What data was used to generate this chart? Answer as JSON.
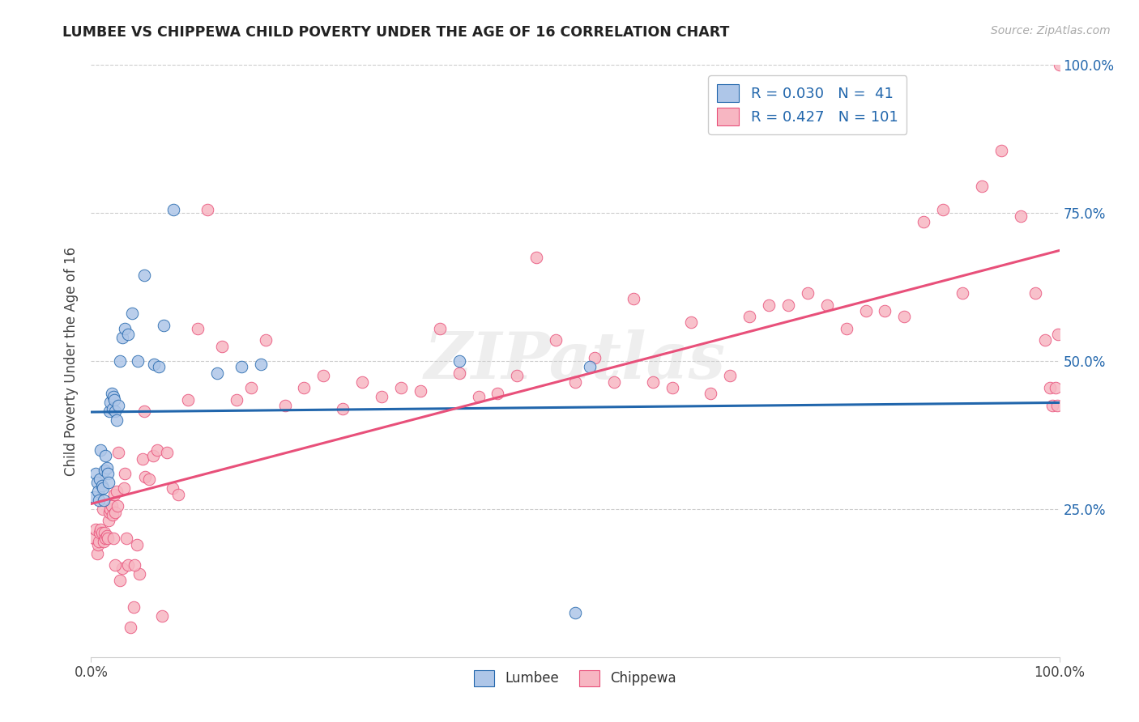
{
  "title": "LUMBEE VS CHIPPEWA CHILD POVERTY UNDER THE AGE OF 16 CORRELATION CHART",
  "source": "Source: ZipAtlas.com",
  "ylabel": "Child Poverty Under the Age of 16",
  "xlim": [
    0,
    1
  ],
  "ylim": [
    0,
    1
  ],
  "lumbee_color": "#aec6e8",
  "chippewa_color": "#f7b6c2",
  "lumbee_line_color": "#2166ac",
  "chippewa_line_color": "#e8507a",
  "watermark": "ZIPatlas",
  "background_color": "#ffffff",
  "lumbee_x": [
    0.003,
    0.005,
    0.006,
    0.007,
    0.008,
    0.009,
    0.01,
    0.011,
    0.012,
    0.013,
    0.014,
    0.015,
    0.016,
    0.017,
    0.018,
    0.019,
    0.02,
    0.021,
    0.022,
    0.023,
    0.024,
    0.025,
    0.026,
    0.028,
    0.03,
    0.032,
    0.035,
    0.038,
    0.042,
    0.048,
    0.055,
    0.065,
    0.07,
    0.075,
    0.085,
    0.13,
    0.155,
    0.175,
    0.38,
    0.5,
    0.515
  ],
  "lumbee_y": [
    0.27,
    0.31,
    0.295,
    0.28,
    0.265,
    0.3,
    0.35,
    0.29,
    0.285,
    0.265,
    0.315,
    0.34,
    0.32,
    0.31,
    0.295,
    0.415,
    0.43,
    0.445,
    0.42,
    0.44,
    0.435,
    0.415,
    0.4,
    0.425,
    0.5,
    0.54,
    0.555,
    0.545,
    0.58,
    0.5,
    0.645,
    0.495,
    0.49,
    0.56,
    0.755,
    0.48,
    0.49,
    0.495,
    0.5,
    0.075,
    0.49
  ],
  "chippewa_x": [
    0.003,
    0.005,
    0.006,
    0.007,
    0.008,
    0.009,
    0.01,
    0.011,
    0.012,
    0.013,
    0.014,
    0.015,
    0.016,
    0.017,
    0.018,
    0.019,
    0.02,
    0.021,
    0.022,
    0.023,
    0.024,
    0.025,
    0.026,
    0.027,
    0.028,
    0.03,
    0.032,
    0.034,
    0.036,
    0.038,
    0.041,
    0.044,
    0.047,
    0.05,
    0.053,
    0.056,
    0.06,
    0.064,
    0.068,
    0.073,
    0.078,
    0.084,
    0.09,
    0.1,
    0.11,
    0.12,
    0.135,
    0.15,
    0.165,
    0.18,
    0.2,
    0.22,
    0.24,
    0.26,
    0.28,
    0.3,
    0.32,
    0.34,
    0.36,
    0.38,
    0.4,
    0.42,
    0.44,
    0.46,
    0.48,
    0.5,
    0.52,
    0.54,
    0.56,
    0.58,
    0.6,
    0.62,
    0.64,
    0.66,
    0.68,
    0.7,
    0.72,
    0.74,
    0.76,
    0.78,
    0.8,
    0.82,
    0.84,
    0.86,
    0.88,
    0.9,
    0.92,
    0.94,
    0.96,
    0.975,
    0.985,
    0.99,
    0.993,
    0.996,
    0.998,
    0.999,
    1.0,
    0.025,
    0.035,
    0.045,
    0.055
  ],
  "chippewa_y": [
    0.2,
    0.215,
    0.175,
    0.19,
    0.195,
    0.21,
    0.215,
    0.21,
    0.25,
    0.195,
    0.21,
    0.2,
    0.205,
    0.2,
    0.23,
    0.245,
    0.25,
    0.255,
    0.24,
    0.2,
    0.275,
    0.245,
    0.28,
    0.255,
    0.345,
    0.13,
    0.15,
    0.285,
    0.2,
    0.155,
    0.05,
    0.085,
    0.19,
    0.14,
    0.335,
    0.305,
    0.3,
    0.34,
    0.35,
    0.07,
    0.345,
    0.285,
    0.275,
    0.435,
    0.555,
    0.755,
    0.525,
    0.435,
    0.455,
    0.535,
    0.425,
    0.455,
    0.475,
    0.42,
    0.465,
    0.44,
    0.455,
    0.45,
    0.555,
    0.48,
    0.44,
    0.445,
    0.475,
    0.675,
    0.535,
    0.465,
    0.505,
    0.465,
    0.605,
    0.465,
    0.455,
    0.565,
    0.445,
    0.475,
    0.575,
    0.595,
    0.595,
    0.615,
    0.595,
    0.555,
    0.585,
    0.585,
    0.575,
    0.735,
    0.755,
    0.615,
    0.795,
    0.855,
    0.745,
    0.615,
    0.535,
    0.455,
    0.425,
    0.455,
    0.425,
    0.545,
    1.0,
    0.155,
    0.31,
    0.155,
    0.415
  ]
}
